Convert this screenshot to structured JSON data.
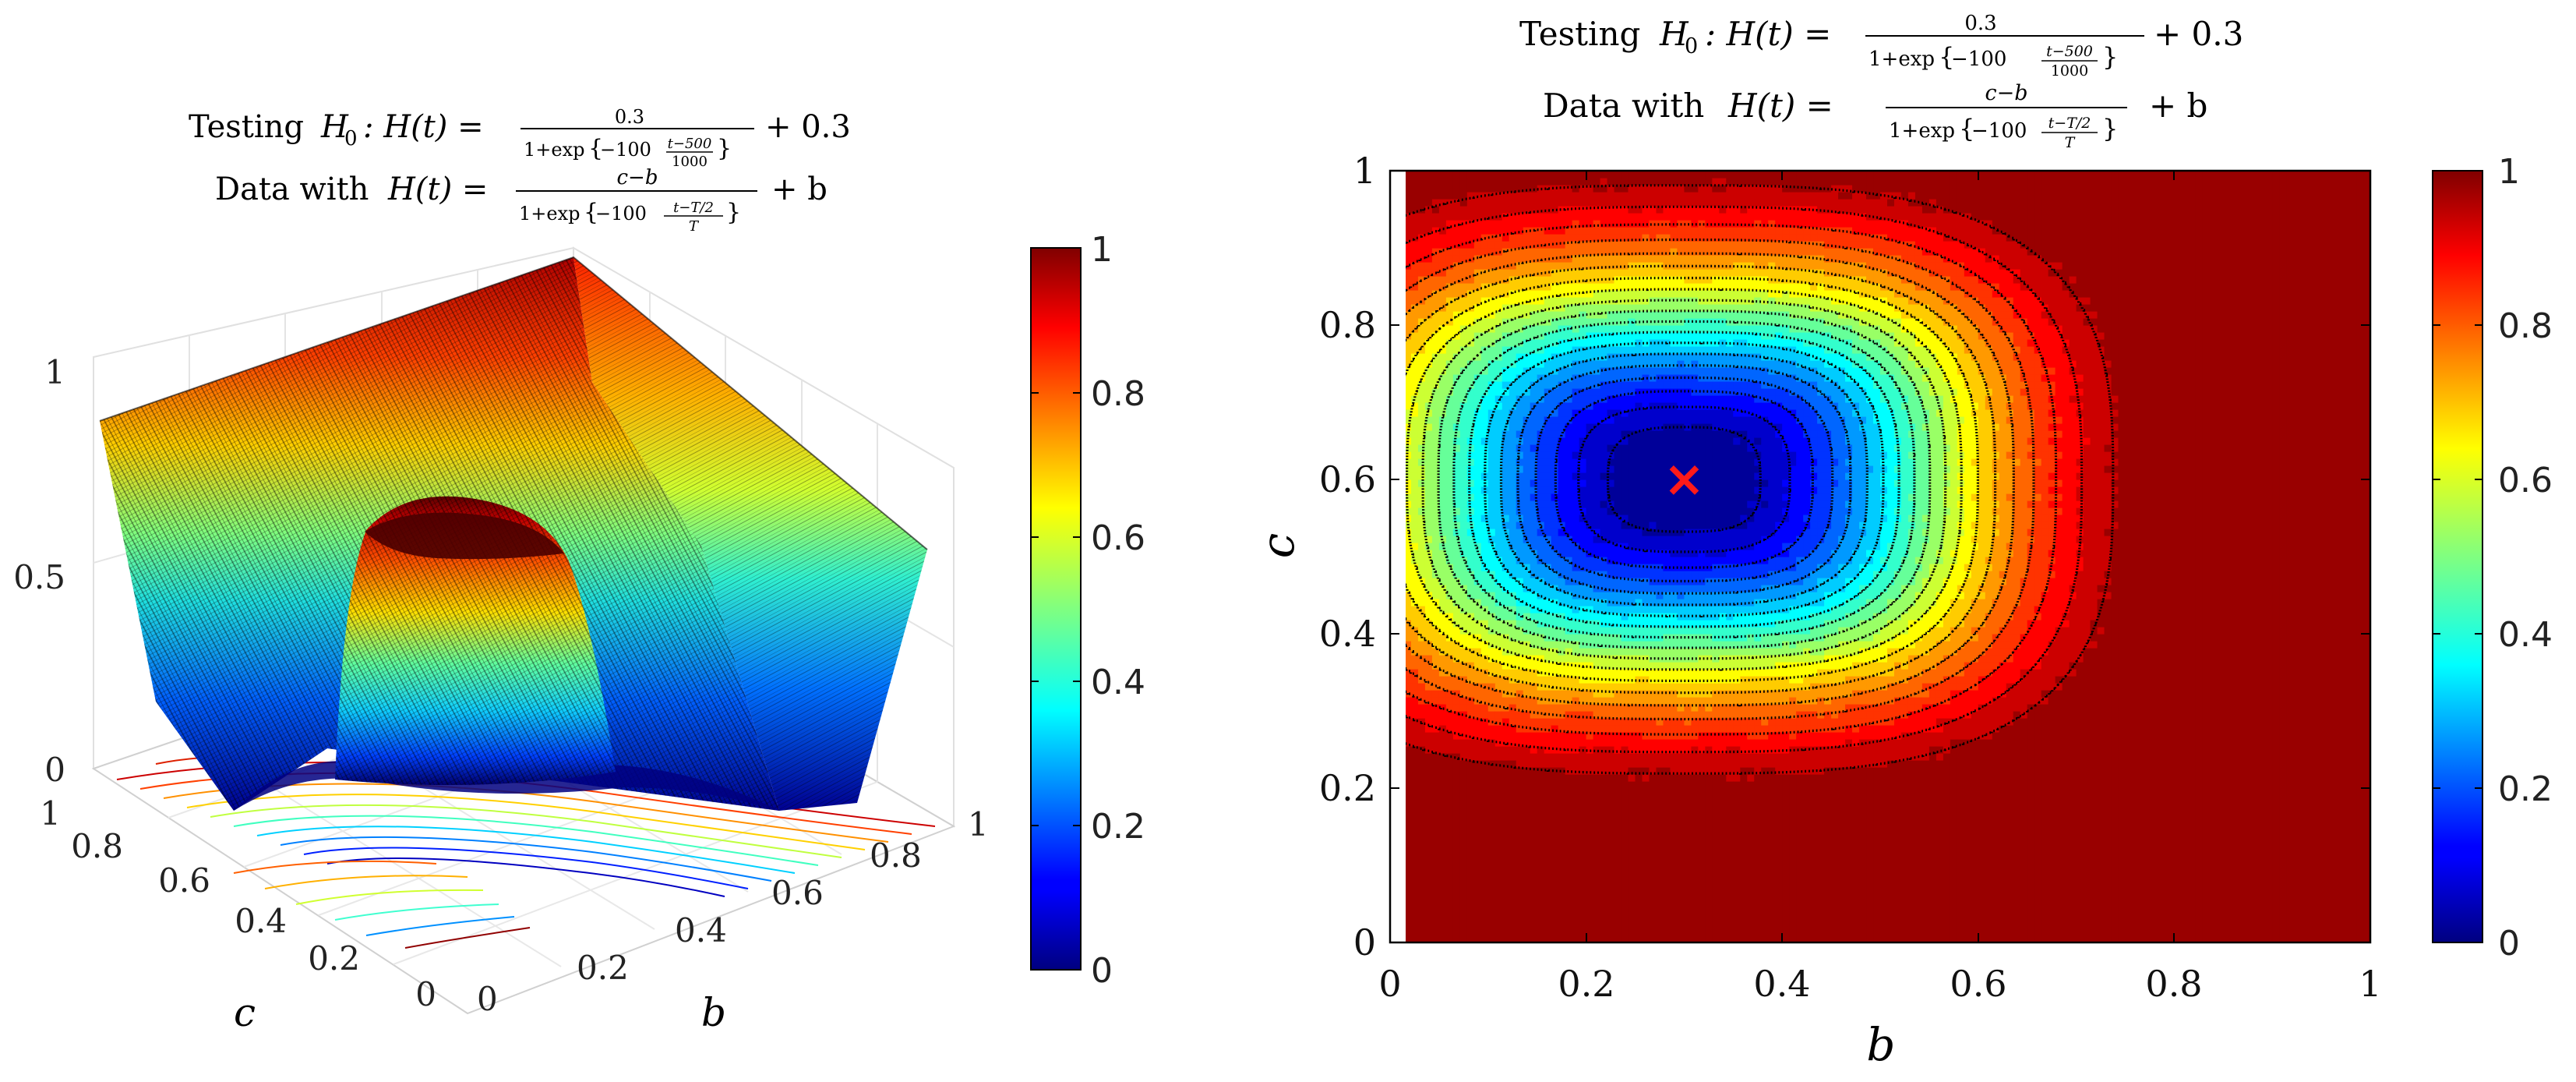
{
  "chart_data": [
    {
      "type": "surface",
      "title_line1": {
        "prefix": "Testing",
        "lhs": "H",
        "sub": "0",
        "rhs": ": H(t) =",
        "num": "0.3",
        "den_pre": "1+exp",
        "exp_coef": "−100",
        "exp_num": "t−500",
        "exp_den": "1000",
        "tail": "+ 0.3"
      },
      "title_line2": {
        "prefix": "Data with",
        "lhs": "H(t) =",
        "num": "c−b",
        "den_pre": "1+exp",
        "exp_coef": "−100",
        "exp_num": "t−T/2",
        "exp_den": "T",
        "tail": "+ b"
      },
      "xlabel": "b",
      "ylabel": "c",
      "zlim": [
        0,
        1
      ],
      "x_ticks": [
        "0",
        "0.2",
        "0.4",
        "0.6",
        "0.8",
        "1"
      ],
      "y_ticks": [
        "0",
        "0.2",
        "0.4",
        "0.6",
        "0.8",
        "1"
      ],
      "z_ticks": [
        "0",
        "0.5",
        "1"
      ],
      "colorbar": {
        "min": 0,
        "max": 1,
        "ticks": [
          "0",
          "0.2",
          "0.4",
          "0.6",
          "0.8",
          "1"
        ]
      },
      "colormap": "jet",
      "minimum_near": {
        "b": 0.3,
        "c": 0.6,
        "z": 0
      }
    },
    {
      "type": "contourf",
      "title_line1": {
        "prefix": "Testing",
        "lhs": "H",
        "sub": "0",
        "rhs": ": H(t) =",
        "num": "0.3",
        "den_pre": "1+exp",
        "exp_coef": "−100",
        "exp_num": "t−500",
        "exp_den": "1000",
        "tail": "+ 0.3"
      },
      "title_line2": {
        "prefix": "Data with",
        "lhs": "H(t) =",
        "num": "c−b",
        "den_pre": "1+exp",
        "exp_coef": "−100",
        "exp_num": "t−T/2",
        "exp_den": "T",
        "tail": "+ b"
      },
      "xlabel": "b",
      "ylabel": "c",
      "xlim": [
        0,
        1
      ],
      "ylim": [
        0,
        1
      ],
      "x_ticks": [
        "0",
        "0.2",
        "0.4",
        "0.6",
        "0.8",
        "1"
      ],
      "y_ticks": [
        "0",
        "0.2",
        "0.4",
        "0.6",
        "0.8",
        "1"
      ],
      "levels": [
        0.05,
        0.1,
        0.15,
        0.2,
        0.25,
        0.3,
        0.35,
        0.4,
        0.45,
        0.5,
        0.55,
        0.6,
        0.65,
        0.7,
        0.75,
        0.8,
        0.85,
        0.9,
        0.95
      ],
      "colorbar": {
        "min": 0,
        "max": 1,
        "ticks": [
          "0",
          "0.2",
          "0.4",
          "0.6",
          "0.8",
          "1"
        ]
      },
      "colormap": "jet",
      "marker": {
        "b": 0.3,
        "c": 0.6,
        "symbol": "×",
        "color": "#ff1a1a"
      }
    }
  ]
}
